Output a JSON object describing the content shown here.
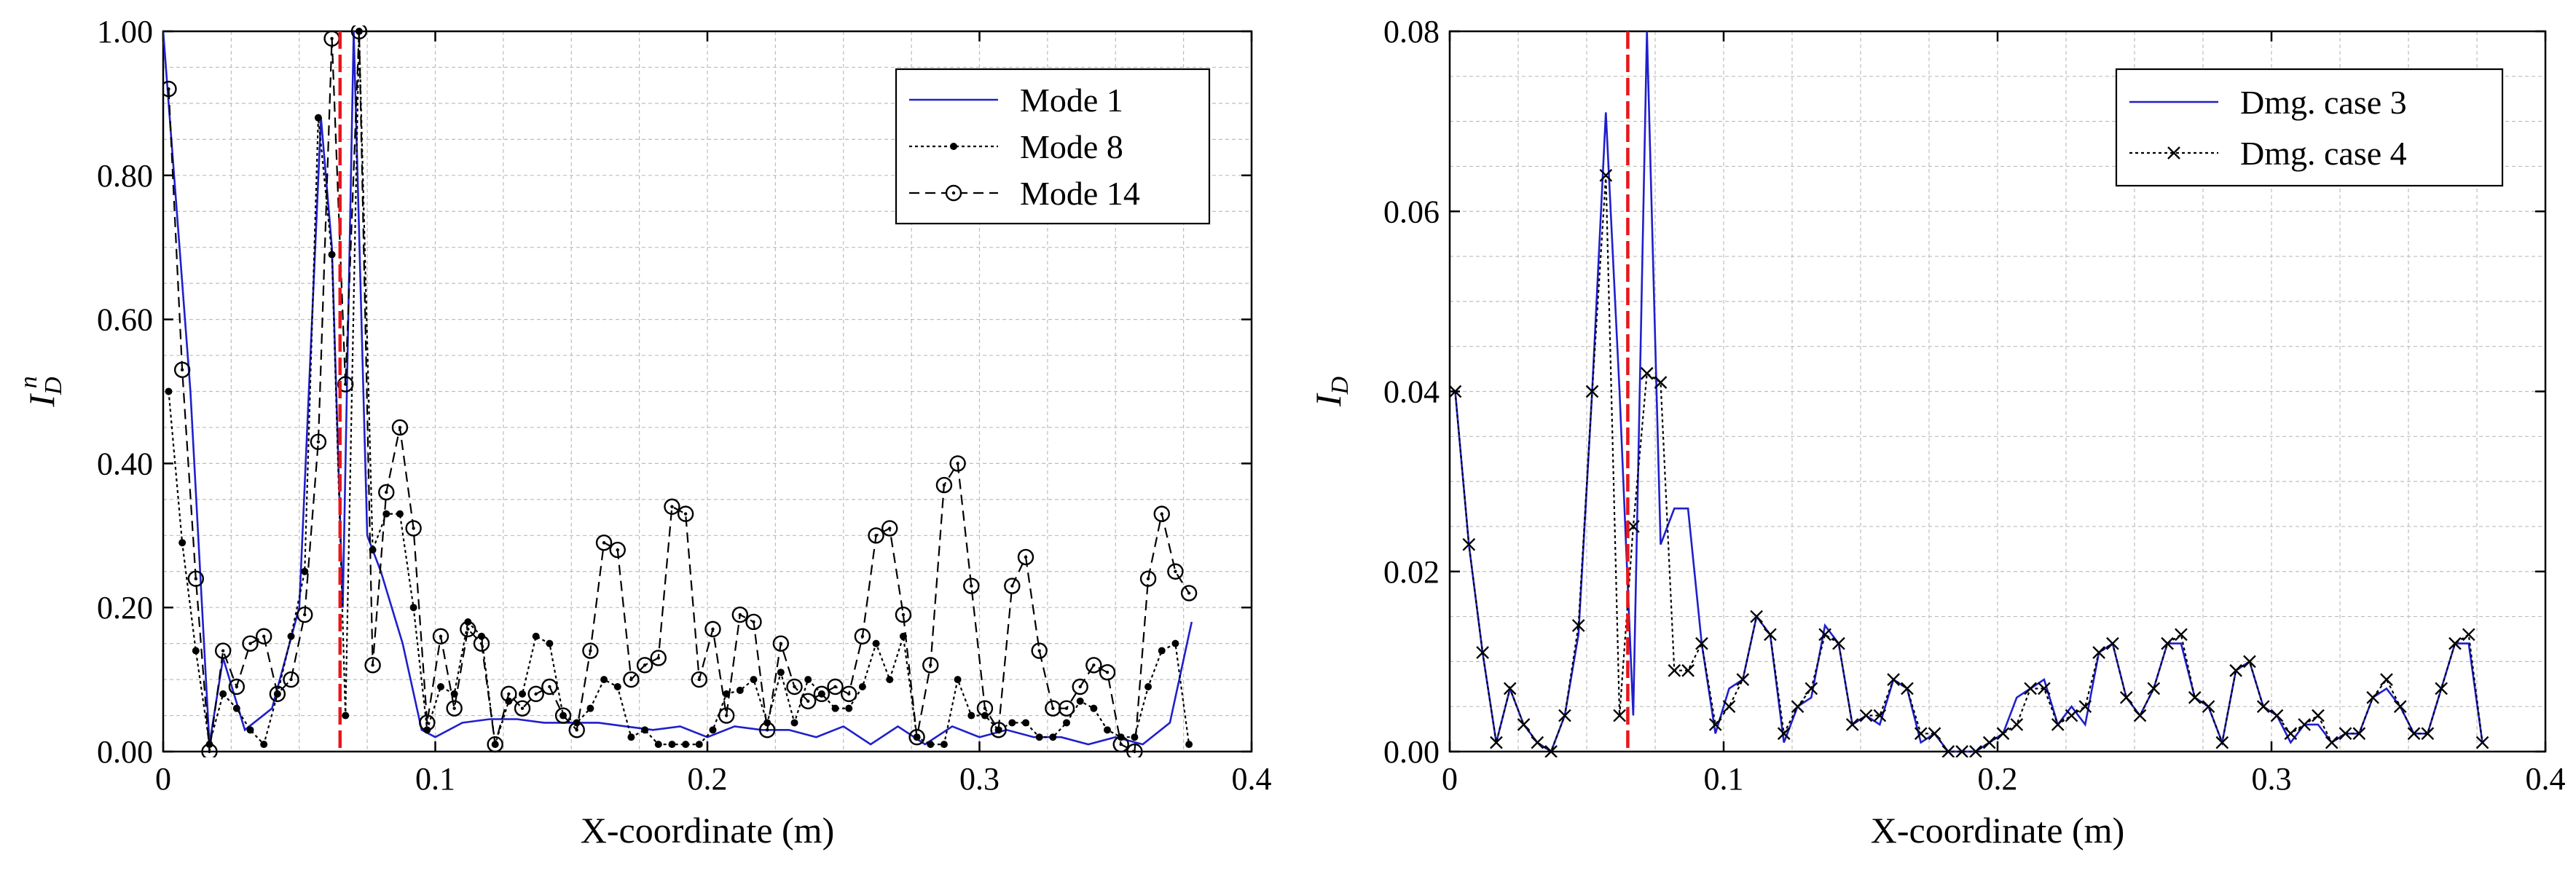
{
  "chart_data": [
    {
      "type": "line",
      "xlabel": "X-coordinate (m)",
      "ylabel": "I_D^n",
      "ylabel_main": "I",
      "ylabel_sub": "D",
      "ylabel_sup": "n",
      "xlim": [
        0,
        0.4
      ],
      "ylim": [
        0,
        1.0
      ],
      "xticks": [
        0,
        0.1,
        0.2,
        0.3,
        0.4
      ],
      "xtick_labels": [
        "0",
        "0.1",
        "0.2",
        "0.3",
        "0.4"
      ],
      "yticks": [
        0,
        0.2,
        0.4,
        0.6,
        0.8,
        1.0
      ],
      "ytick_labels": [
        "0.00",
        "0.20",
        "0.40",
        "0.60",
        "0.80",
        "1.00"
      ],
      "grid": true,
      "legend_position": "top-right",
      "damage_line_x": 0.065,
      "series": [
        {
          "name": "Mode 1",
          "color": "#1f1fcc",
          "style": "solid",
          "marker": "none",
          "x": [
            0,
            0.01,
            0.017,
            0.022,
            0.03,
            0.04,
            0.05,
            0.058,
            0.062,
            0.066,
            0.07,
            0.075,
            0.08,
            0.088,
            0.095,
            0.1,
            0.11,
            0.12,
            0.13,
            0.14,
            0.15,
            0.16,
            0.17,
            0.18,
            0.19,
            0.2,
            0.21,
            0.22,
            0.23,
            0.24,
            0.25,
            0.26,
            0.27,
            0.28,
            0.29,
            0.3,
            0.31,
            0.32,
            0.33,
            0.34,
            0.35,
            0.36,
            0.37,
            0.378
          ],
          "y": [
            1.0,
            0.5,
            0.01,
            0.13,
            0.03,
            0.06,
            0.2,
            0.88,
            0.7,
            0.2,
            1.0,
            0.3,
            0.25,
            0.15,
            0.03,
            0.02,
            0.04,
            0.045,
            0.045,
            0.04,
            0.04,
            0.04,
            0.035,
            0.03,
            0.035,
            0.02,
            0.035,
            0.03,
            0.03,
            0.02,
            0.035,
            0.01,
            0.035,
            0.01,
            0.035,
            0.02,
            0.03,
            0.02,
            0.02,
            0.01,
            0.02,
            0.01,
            0.04,
            0.18
          ]
        },
        {
          "name": "Mode 8",
          "color": "#000000",
          "style": "dotted",
          "marker": "dot",
          "x": [
            0.002,
            0.007,
            0.012,
            0.017,
            0.022,
            0.027,
            0.032,
            0.037,
            0.042,
            0.047,
            0.052,
            0.057,
            0.062,
            0.067,
            0.072,
            0.077,
            0.082,
            0.087,
            0.092,
            0.097,
            0.102,
            0.107,
            0.112,
            0.117,
            0.122,
            0.127,
            0.132,
            0.137,
            0.142,
            0.147,
            0.152,
            0.157,
            0.162,
            0.167,
            0.172,
            0.177,
            0.182,
            0.187,
            0.192,
            0.197,
            0.202,
            0.207,
            0.212,
            0.217,
            0.222,
            0.227,
            0.232,
            0.237,
            0.242,
            0.247,
            0.252,
            0.257,
            0.262,
            0.267,
            0.272,
            0.277,
            0.282,
            0.287,
            0.292,
            0.297,
            0.302,
            0.307,
            0.312,
            0.317,
            0.322,
            0.327,
            0.332,
            0.337,
            0.342,
            0.347,
            0.352,
            0.357,
            0.362,
            0.367,
            0.372,
            0.377
          ],
          "y": [
            0.5,
            0.29,
            0.14,
            0.01,
            0.08,
            0.06,
            0.03,
            0.01,
            0.08,
            0.16,
            0.25,
            0.88,
            0.69,
            0.05,
            1.0,
            0.28,
            0.33,
            0.33,
            0.2,
            0.03,
            0.09,
            0.08,
            0.18,
            0.16,
            0.01,
            0.07,
            0.08,
            0.16,
            0.15,
            0.05,
            0.04,
            0.06,
            0.1,
            0.09,
            0.02,
            0.03,
            0.01,
            0.01,
            0.01,
            0.01,
            0.03,
            0.08,
            0.085,
            0.1,
            0.04,
            0.11,
            0.04,
            0.1,
            0.08,
            0.06,
            0.06,
            0.09,
            0.15,
            0.1,
            0.16,
            0.02,
            0.01,
            0.01,
            0.1,
            0.05,
            0.05,
            0.03,
            0.04,
            0.04,
            0.02,
            0.02,
            0.04,
            0.07,
            0.06,
            0.03,
            0.02,
            0.02,
            0.09,
            0.14,
            0.15,
            0.01
          ]
        },
        {
          "name": "Mode 14",
          "color": "#000000",
          "style": "dashed",
          "marker": "circle",
          "x": [
            0.002,
            0.007,
            0.012,
            0.017,
            0.022,
            0.027,
            0.032,
            0.037,
            0.042,
            0.047,
            0.052,
            0.057,
            0.062,
            0.067,
            0.072,
            0.077,
            0.082,
            0.087,
            0.092,
            0.097,
            0.102,
            0.107,
            0.112,
            0.117,
            0.122,
            0.127,
            0.132,
            0.137,
            0.142,
            0.147,
            0.152,
            0.157,
            0.162,
            0.167,
            0.172,
            0.177,
            0.182,
            0.187,
            0.192,
            0.197,
            0.202,
            0.207,
            0.212,
            0.217,
            0.222,
            0.227,
            0.232,
            0.237,
            0.242,
            0.247,
            0.252,
            0.257,
            0.262,
            0.267,
            0.272,
            0.277,
            0.282,
            0.287,
            0.292,
            0.297,
            0.302,
            0.307,
            0.312,
            0.317,
            0.322,
            0.327,
            0.332,
            0.337,
            0.342,
            0.347,
            0.352,
            0.357,
            0.362,
            0.367,
            0.372,
            0.377
          ],
          "y": [
            0.92,
            0.53,
            0.24,
            0.0,
            0.14,
            0.09,
            0.15,
            0.16,
            0.08,
            0.1,
            0.19,
            0.43,
            0.99,
            0.51,
            1.0,
            0.12,
            0.36,
            0.45,
            0.31,
            0.04,
            0.16,
            0.06,
            0.17,
            0.15,
            0.01,
            0.08,
            0.06,
            0.08,
            0.09,
            0.05,
            0.03,
            0.14,
            0.29,
            0.28,
            0.1,
            0.12,
            0.13,
            0.34,
            0.33,
            0.1,
            0.17,
            0.05,
            0.19,
            0.18,
            0.03,
            0.15,
            0.09,
            0.07,
            0.08,
            0.09,
            0.08,
            0.16,
            0.3,
            0.31,
            0.19,
            0.02,
            0.12,
            0.37,
            0.4,
            0.23,
            0.06,
            0.03,
            0.23,
            0.27,
            0.14,
            0.06,
            0.06,
            0.09,
            0.12,
            0.11,
            0.01,
            0.0,
            0.24,
            0.33,
            0.25,
            0.22
          ]
        }
      ]
    },
    {
      "type": "line",
      "xlabel": "X-coordinate (m)",
      "ylabel": "I_D",
      "ylabel_main": "I",
      "ylabel_sub": "D",
      "xlim": [
        0,
        0.4
      ],
      "ylim": [
        0,
        0.08
      ],
      "xticks": [
        0,
        0.1,
        0.2,
        0.3,
        0.4
      ],
      "xtick_labels": [
        "0",
        "0.1",
        "0.2",
        "0.3",
        "0.4"
      ],
      "yticks": [
        0,
        0.02,
        0.04,
        0.06,
        0.08
      ],
      "ytick_labels": [
        "0.00",
        "0.02",
        "0.04",
        "0.06",
        "0.08"
      ],
      "grid": true,
      "legend_position": "top-right",
      "damage_line_x": 0.065,
      "series": [
        {
          "name": "Dmg. case 3",
          "color": "#1f1fcc",
          "style": "solid",
          "marker": "none",
          "x": [
            0.002,
            0.007,
            0.012,
            0.017,
            0.022,
            0.027,
            0.032,
            0.037,
            0.042,
            0.047,
            0.052,
            0.057,
            0.062,
            0.067,
            0.072,
            0.077,
            0.082,
            0.087,
            0.092,
            0.097,
            0.102,
            0.107,
            0.112,
            0.117,
            0.122,
            0.127,
            0.132,
            0.137,
            0.142,
            0.147,
            0.152,
            0.157,
            0.162,
            0.167,
            0.172,
            0.177,
            0.182,
            0.187,
            0.192,
            0.197,
            0.202,
            0.207,
            0.212,
            0.217,
            0.222,
            0.227,
            0.232,
            0.237,
            0.242,
            0.247,
            0.252,
            0.257,
            0.262,
            0.267,
            0.272,
            0.277,
            0.282,
            0.287,
            0.292,
            0.297,
            0.302,
            0.307,
            0.312,
            0.317,
            0.322,
            0.327,
            0.332,
            0.337,
            0.342,
            0.347,
            0.352,
            0.357,
            0.362,
            0.367,
            0.372,
            0.377
          ],
          "y": [
            0.04,
            0.023,
            0.011,
            0.001,
            0.007,
            0.003,
            0.001,
            0.0,
            0.004,
            0.013,
            0.04,
            0.071,
            0.04,
            0.004,
            0.08,
            0.023,
            0.027,
            0.027,
            0.012,
            0.002,
            0.007,
            0.008,
            0.015,
            0.013,
            0.001,
            0.005,
            0.006,
            0.014,
            0.012,
            0.003,
            0.004,
            0.003,
            0.008,
            0.007,
            0.001,
            0.002,
            0.0,
            0.0,
            0.0,
            0.001,
            0.002,
            0.006,
            0.007,
            0.008,
            0.003,
            0.005,
            0.003,
            0.011,
            0.012,
            0.006,
            0.004,
            0.007,
            0.012,
            0.012,
            0.006,
            0.005,
            0.001,
            0.009,
            0.01,
            0.005,
            0.004,
            0.001,
            0.003,
            0.003,
            0.001,
            0.002,
            0.002,
            0.006,
            0.007,
            0.005,
            0.002,
            0.002,
            0.007,
            0.012,
            0.012,
            0.001
          ]
        },
        {
          "name": "Dmg. case 4",
          "color": "#000000",
          "style": "dotted",
          "marker": "cross",
          "x": [
            0.002,
            0.007,
            0.012,
            0.017,
            0.022,
            0.027,
            0.032,
            0.037,
            0.042,
            0.047,
            0.052,
            0.057,
            0.062,
            0.067,
            0.072,
            0.077,
            0.082,
            0.087,
            0.092,
            0.097,
            0.102,
            0.107,
            0.112,
            0.117,
            0.122,
            0.127,
            0.132,
            0.137,
            0.142,
            0.147,
            0.152,
            0.157,
            0.162,
            0.167,
            0.172,
            0.177,
            0.182,
            0.187,
            0.192,
            0.197,
            0.202,
            0.207,
            0.212,
            0.217,
            0.222,
            0.227,
            0.232,
            0.237,
            0.242,
            0.247,
            0.252,
            0.257,
            0.262,
            0.267,
            0.272,
            0.277,
            0.282,
            0.287,
            0.292,
            0.297,
            0.302,
            0.307,
            0.312,
            0.317,
            0.322,
            0.327,
            0.332,
            0.337,
            0.342,
            0.347,
            0.352,
            0.357,
            0.362,
            0.367,
            0.372,
            0.377
          ],
          "y": [
            0.04,
            0.023,
            0.011,
            0.001,
            0.007,
            0.003,
            0.001,
            0.0,
            0.004,
            0.014,
            0.04,
            0.064,
            0.004,
            0.025,
            0.042,
            0.041,
            0.009,
            0.009,
            0.012,
            0.003,
            0.005,
            0.008,
            0.015,
            0.013,
            0.002,
            0.005,
            0.007,
            0.013,
            0.012,
            0.003,
            0.004,
            0.004,
            0.008,
            0.007,
            0.002,
            0.002,
            0.0,
            0.0,
            0.0,
            0.001,
            0.002,
            0.003,
            0.007,
            0.007,
            0.003,
            0.004,
            0.005,
            0.011,
            0.012,
            0.006,
            0.004,
            0.007,
            0.012,
            0.013,
            0.006,
            0.005,
            0.001,
            0.009,
            0.01,
            0.005,
            0.004,
            0.002,
            0.003,
            0.004,
            0.001,
            0.002,
            0.002,
            0.006,
            0.008,
            0.005,
            0.002,
            0.002,
            0.007,
            0.012,
            0.013,
            0.001
          ]
        }
      ]
    }
  ]
}
